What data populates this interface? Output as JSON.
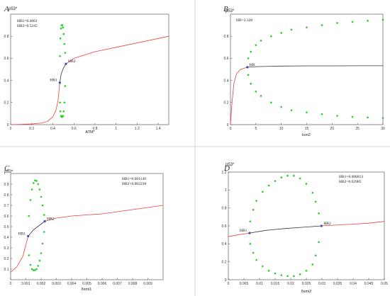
{
  "colors": {
    "stable": "#e8433c",
    "unstable": "#333333",
    "oscillation": "#22d11f",
    "hopf_point": "#3b4bc7"
  },
  "chart_data": [
    {
      "panel": "A",
      "type": "line",
      "ylabel": "p53*",
      "xlabel": "ATM*",
      "info": [
        "HB1=0.4661",
        "HB2=0.5245"
      ],
      "xlim": [
        0,
        1.5
      ],
      "ylim": [
        0,
        1.0
      ],
      "xticks": [
        0,
        0.2,
        0.4,
        0.6,
        0.8,
        1,
        1.2,
        1.4
      ],
      "xtick_labels": [
        "0",
        "0.2",
        "0.4",
        "0.6",
        "0.8",
        "1",
        "1.2",
        "1.4"
      ],
      "yticks": [
        0,
        0.2,
        0.4,
        0.6,
        0.8
      ],
      "ytick_labels": [
        "0",
        "0.2",
        "0.4",
        "0.6",
        "0.8"
      ],
      "stable_pre": [
        [
          0,
          0.0
        ],
        [
          0.1,
          0.002
        ],
        [
          0.2,
          0.006
        ],
        [
          0.3,
          0.015
        ],
        [
          0.35,
          0.03
        ],
        [
          0.4,
          0.07
        ],
        [
          0.43,
          0.13
        ],
        [
          0.45,
          0.22
        ],
        [
          0.4661,
          0.38
        ]
      ],
      "unstable": [
        [
          0.4661,
          0.38
        ],
        [
          0.48,
          0.46
        ],
        [
          0.5,
          0.51
        ],
        [
          0.5245,
          0.55
        ]
      ],
      "stable_post": [
        [
          0.5245,
          0.55
        ],
        [
          0.6,
          0.6
        ],
        [
          0.8,
          0.66
        ],
        [
          1.0,
          0.7
        ],
        [
          1.2,
          0.74
        ],
        [
          1.4,
          0.78
        ],
        [
          1.5,
          0.8
        ]
      ],
      "osc_max": [
        [
          0.4661,
          0.38
        ],
        [
          0.468,
          0.62
        ],
        [
          0.472,
          0.78
        ],
        [
          0.478,
          0.87
        ],
        [
          0.484,
          0.9
        ],
        [
          0.49,
          0.9
        ],
        [
          0.496,
          0.88
        ],
        [
          0.503,
          0.82
        ],
        [
          0.51,
          0.73
        ],
        [
          0.517,
          0.65
        ],
        [
          0.5245,
          0.55
        ]
      ],
      "osc_min": [
        [
          0.4661,
          0.38
        ],
        [
          0.468,
          0.2
        ],
        [
          0.472,
          0.12
        ],
        [
          0.478,
          0.08
        ],
        [
          0.484,
          0.07
        ],
        [
          0.49,
          0.07
        ],
        [
          0.496,
          0.08
        ],
        [
          0.503,
          0.12
        ],
        [
          0.51,
          0.2
        ],
        [
          0.517,
          0.35
        ],
        [
          0.5245,
          0.55
        ]
      ],
      "hopf_points": [
        {
          "label": "HB1",
          "x": 0.4661,
          "y": 0.38
        },
        {
          "label": "HB2",
          "x": 0.5245,
          "y": 0.55
        }
      ]
    },
    {
      "panel": "B",
      "type": "line",
      "ylabel": "p53*",
      "xlabel": "kon2",
      "info": [
        "HB=3.328"
      ],
      "xlim": [
        0,
        30
      ],
      "ylim": [
        0,
        1.0
      ],
      "xticks": [
        0,
        5,
        10,
        15,
        20,
        25,
        30
      ],
      "xtick_labels": [
        "0",
        "5",
        "10",
        "15",
        "20",
        "25",
        "30"
      ],
      "yticks": [
        0,
        0.2,
        0.4,
        0.6,
        0.8
      ],
      "ytick_labels": [
        "0",
        "0.2",
        "0.4",
        "0.6",
        "0.8"
      ],
      "stable_pre": [
        [
          0,
          0.0
        ],
        [
          0.3,
          0.2
        ],
        [
          0.7,
          0.38
        ],
        [
          1.2,
          0.46
        ],
        [
          2.0,
          0.5
        ],
        [
          3.328,
          0.52
        ]
      ],
      "unstable": [
        [
          3.328,
          0.52
        ],
        [
          5,
          0.525
        ],
        [
          10,
          0.53
        ],
        [
          15,
          0.532
        ],
        [
          20,
          0.532
        ],
        [
          25,
          0.533
        ],
        [
          30,
          0.533
        ]
      ],
      "stable_post": [],
      "osc_max": [
        [
          3.328,
          0.52
        ],
        [
          3.5,
          0.6
        ],
        [
          4,
          0.66
        ],
        [
          5,
          0.72
        ],
        [
          6,
          0.76
        ],
        [
          8,
          0.8
        ],
        [
          10,
          0.83
        ],
        [
          12,
          0.86
        ],
        [
          15,
          0.88
        ],
        [
          18,
          0.9
        ],
        [
          21,
          0.92
        ],
        [
          24,
          0.93
        ],
        [
          27,
          0.94
        ],
        [
          30,
          0.95
        ]
      ],
      "osc_min": [
        [
          3.328,
          0.52
        ],
        [
          3.5,
          0.45
        ],
        [
          4,
          0.37
        ],
        [
          5,
          0.3
        ],
        [
          6,
          0.26
        ],
        [
          8,
          0.2
        ],
        [
          10,
          0.16
        ],
        [
          12,
          0.13
        ],
        [
          15,
          0.11
        ],
        [
          18,
          0.095
        ],
        [
          21,
          0.08
        ],
        [
          24,
          0.07
        ],
        [
          27,
          0.065
        ],
        [
          30,
          0.06
        ]
      ],
      "hopf_points": [
        {
          "label": "HB",
          "x": 3.328,
          "y": 0.52
        }
      ]
    },
    {
      "panel": "C",
      "type": "line",
      "ylabel": "p53*",
      "xlabel": "δsmi1",
      "info": [
        "HB1=0.001149",
        "HB2=0.002238"
      ],
      "xlim": [
        0,
        0.01
      ],
      "ylim": [
        0,
        1.0
      ],
      "xticks": [
        0,
        0.001,
        0.002,
        0.003,
        0.004,
        0.005,
        0.006,
        0.007,
        0.008,
        0.009
      ],
      "xtick_labels": [
        "0",
        "0.001",
        "0.002",
        "0.003",
        "0.004",
        "0.005",
        "0.006",
        "0.007",
        "0.008",
        "0.009"
      ],
      "yticks": [
        0.1,
        0.2,
        0.3,
        0.4,
        0.5,
        0.6,
        0.7,
        0.8,
        0.9
      ],
      "ytick_labels": [
        "0.1",
        "0.2",
        "0.3",
        "0.4",
        "0.5",
        "0.6",
        "0.7",
        "0.8",
        "0.9"
      ],
      "stable_pre": [
        [
          0,
          0.07
        ],
        [
          0.0004,
          0.12
        ],
        [
          0.0008,
          0.22
        ],
        [
          0.001149,
          0.41
        ]
      ],
      "unstable": [
        [
          0.001149,
          0.41
        ],
        [
          0.0015,
          0.47
        ],
        [
          0.002238,
          0.55
        ]
      ],
      "stable_post": [
        [
          0.002238,
          0.55
        ],
        [
          0.003,
          0.58
        ],
        [
          0.004,
          0.6
        ],
        [
          0.005,
          0.61
        ],
        [
          0.006,
          0.62
        ],
        [
          0.007,
          0.64
        ],
        [
          0.008,
          0.66
        ],
        [
          0.009,
          0.68
        ],
        [
          0.01,
          0.7
        ]
      ],
      "osc_max": [
        [
          0.001149,
          0.41
        ],
        [
          0.0012,
          0.6
        ],
        [
          0.0013,
          0.75
        ],
        [
          0.0014,
          0.85
        ],
        [
          0.0015,
          0.91
        ],
        [
          0.0016,
          0.935
        ],
        [
          0.0017,
          0.93
        ],
        [
          0.0018,
          0.9
        ],
        [
          0.0019,
          0.85
        ],
        [
          0.002,
          0.78
        ],
        [
          0.0021,
          0.7
        ],
        [
          0.0022,
          0.61
        ],
        [
          0.002238,
          0.55
        ]
      ],
      "osc_min": [
        [
          0.001149,
          0.41
        ],
        [
          0.0012,
          0.23
        ],
        [
          0.0013,
          0.14
        ],
        [
          0.0014,
          0.1
        ],
        [
          0.0015,
          0.09
        ],
        [
          0.0016,
          0.09
        ],
        [
          0.0017,
          0.1
        ],
        [
          0.0018,
          0.13
        ],
        [
          0.0019,
          0.18
        ],
        [
          0.002,
          0.25
        ],
        [
          0.0021,
          0.34
        ],
        [
          0.0022,
          0.45
        ],
        [
          0.002238,
          0.55
        ]
      ],
      "hopf_points": [
        {
          "label": "HB1",
          "x": 0.001149,
          "y": 0.41
        },
        {
          "label": "HB2",
          "x": 0.002238,
          "y": 0.55
        }
      ]
    },
    {
      "panel": "D",
      "type": "line",
      "ylabel": "p53*",
      "xlabel": "δsmi2",
      "info": [
        "HB1=0.006813",
        "HB2=0.02985"
      ],
      "xlim": [
        0,
        0.05
      ],
      "ylim": [
        0,
        1.2
      ],
      "xticks": [
        0,
        0.005,
        0.01,
        0.015,
        0.02,
        0.025,
        0.03,
        0.035,
        0.04,
        0.045,
        0.05
      ],
      "xtick_labels": [
        "0",
        "0.005",
        "0.01",
        "0.015",
        "0.02",
        "0.025",
        "0.03",
        "0.035",
        "0.04",
        "0.045",
        "0.05"
      ],
      "yticks": [
        0,
        0.2,
        0.4,
        0.6,
        0.8,
        1,
        1.2
      ],
      "ytick_labels": [
        "0",
        "0.2",
        "0.4",
        "0.6",
        "0.8",
        "1",
        "1.2"
      ],
      "stable_pre": [
        [
          0,
          0.48
        ],
        [
          0.003,
          0.5
        ],
        [
          0.006813,
          0.52
        ]
      ],
      "unstable": [
        [
          0.006813,
          0.52
        ],
        [
          0.012,
          0.55
        ],
        [
          0.018,
          0.57
        ],
        [
          0.024,
          0.585
        ],
        [
          0.02985,
          0.6
        ]
      ],
      "stable_post": [
        [
          0.02985,
          0.6
        ],
        [
          0.035,
          0.61
        ],
        [
          0.04,
          0.62
        ],
        [
          0.045,
          0.63
        ],
        [
          0.05,
          0.65
        ]
      ],
      "osc_max": [
        [
          0.006813,
          0.52
        ],
        [
          0.007,
          0.65
        ],
        [
          0.008,
          0.78
        ],
        [
          0.009,
          0.88
        ],
        [
          0.011,
          0.98
        ],
        [
          0.013,
          1.05
        ],
        [
          0.015,
          1.1
        ],
        [
          0.017,
          1.14
        ],
        [
          0.019,
          1.16
        ],
        [
          0.021,
          1.16
        ],
        [
          0.023,
          1.13
        ],
        [
          0.025,
          1.07
        ],
        [
          0.027,
          0.97
        ],
        [
          0.028,
          0.87
        ],
        [
          0.029,
          0.74
        ],
        [
          0.02985,
          0.6
        ]
      ],
      "osc_min": [
        [
          0.006813,
          0.52
        ],
        [
          0.007,
          0.4
        ],
        [
          0.008,
          0.3
        ],
        [
          0.009,
          0.22
        ],
        [
          0.011,
          0.15
        ],
        [
          0.013,
          0.1
        ],
        [
          0.015,
          0.07
        ],
        [
          0.017,
          0.05
        ],
        [
          0.019,
          0.04
        ],
        [
          0.021,
          0.04
        ],
        [
          0.023,
          0.06
        ],
        [
          0.025,
          0.1
        ],
        [
          0.027,
          0.17
        ],
        [
          0.028,
          0.27
        ],
        [
          0.029,
          0.42
        ],
        [
          0.02985,
          0.6
        ]
      ],
      "hopf_points": [
        {
          "label": "HB1",
          "x": 0.006813,
          "y": 0.52
        },
        {
          "label": "HB2",
          "x": 0.02985,
          "y": 0.6
        }
      ]
    }
  ]
}
